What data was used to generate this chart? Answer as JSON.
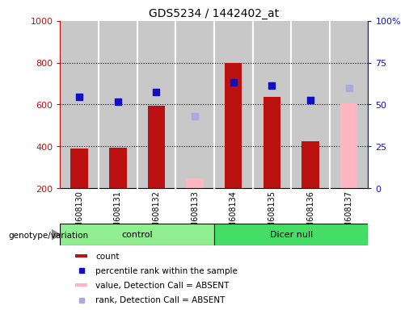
{
  "title": "GDS5234 / 1442402_at",
  "samples": [
    "GSM608130",
    "GSM608131",
    "GSM608132",
    "GSM608133",
    "GSM608134",
    "GSM608135",
    "GSM608136",
    "GSM608137"
  ],
  "groups": [
    "control",
    "control",
    "control",
    "control",
    "Dicer null",
    "Dicer null",
    "Dicer null",
    "Dicer null"
  ],
  "count_values": [
    390,
    395,
    595,
    null,
    800,
    635,
    425,
    null
  ],
  "count_absent_values": [
    null,
    null,
    null,
    245,
    null,
    null,
    null,
    605
  ],
  "rank_values": [
    635,
    615,
    660,
    null,
    705,
    690,
    620,
    null
  ],
  "rank_absent_values": [
    null,
    null,
    null,
    545,
    null,
    null,
    null,
    680
  ],
  "ylim_left": [
    200,
    1000
  ],
  "ylim_right": [
    0,
    100
  ],
  "yticks_left": [
    200,
    400,
    600,
    800,
    1000
  ],
  "yticks_right": [
    0,
    25,
    50,
    75,
    100
  ],
  "ytick_labels_left": [
    "200",
    "400",
    "600",
    "800",
    "1000"
  ],
  "ytick_labels_right": [
    "0",
    "25",
    "50",
    "75",
    "100%"
  ],
  "color_control": "#90EE90",
  "color_dicer": "#44DD66",
  "color_bar_red": "#BB1111",
  "color_bar_pink": "#FFB6C1",
  "color_dot_blue": "#1111BB",
  "color_dot_lightblue": "#AAAADD",
  "bar_width": 0.45,
  "group_label": "genotype/variation"
}
